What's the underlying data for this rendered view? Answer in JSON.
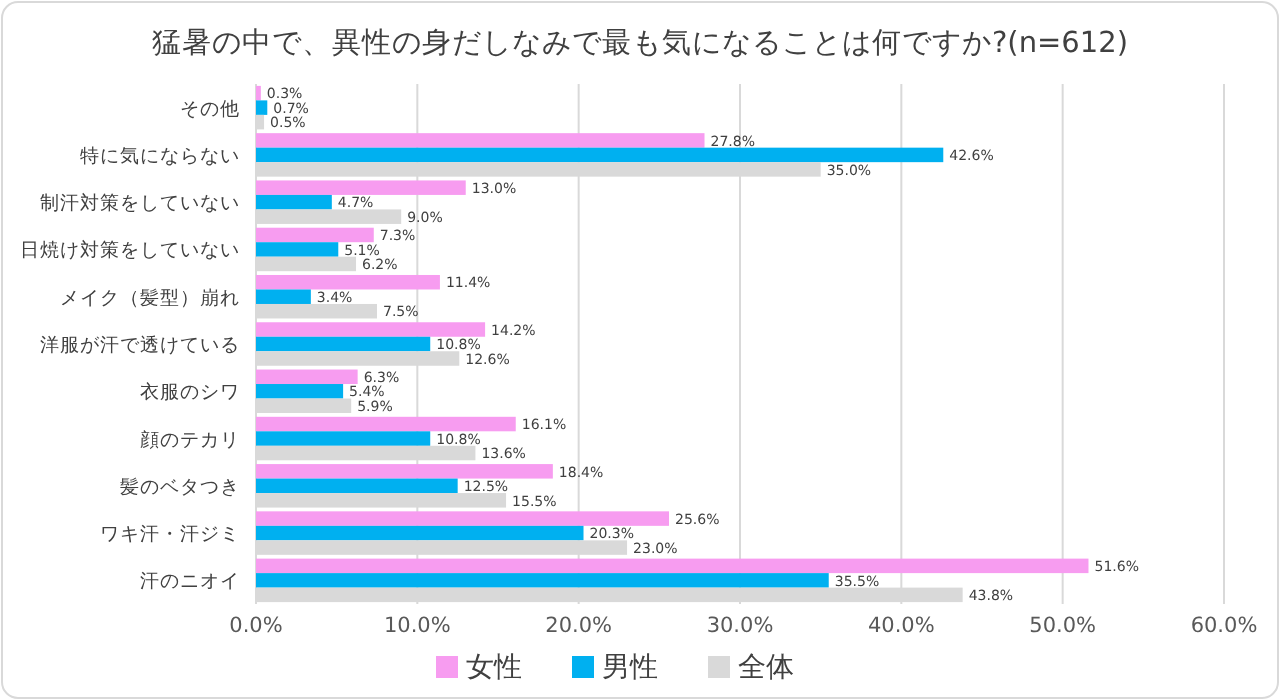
{
  "chart_data": {
    "type": "bar",
    "orientation": "horizontal",
    "title": "猛暑の中で、異性の身だしなみで最も気になることは何ですか?(n=612)",
    "categories": [
      "その他",
      "特に気にならない",
      "制汗対策をしていない",
      "日焼け対策をしていない",
      "メイク（髪型）崩れ",
      "洋服が汗で透けている",
      "衣服のシワ",
      "顔のテカリ",
      "髪のベタつき",
      "ワキ汗・汗ジミ",
      "汗のニオイ"
    ],
    "series": [
      {
        "name": "女性",
        "color": "#f79cf0",
        "values": [
          0.3,
          27.8,
          13.0,
          7.3,
          11.4,
          14.2,
          6.3,
          16.1,
          18.4,
          25.6,
          51.6
        ],
        "value_labels": [
          "0.3%",
          "27.8%",
          "13.0%",
          "7.3%",
          "11.4%",
          "14.2%",
          "6.3%",
          "16.1%",
          "18.4%",
          "25.6%",
          "51.6%"
        ]
      },
      {
        "name": "男性",
        "color": "#00b0f0",
        "values": [
          0.7,
          42.6,
          4.7,
          5.1,
          3.4,
          10.8,
          5.4,
          10.8,
          12.5,
          20.3,
          35.5
        ],
        "value_labels": [
          "0.7%",
          "42.6%",
          "4.7%",
          "5.1%",
          "3.4%",
          "10.8%",
          "5.4%",
          "10.8%",
          "12.5%",
          "20.3%",
          "35.5%"
        ]
      },
      {
        "name": "全体",
        "color": "#d9d9d9",
        "values": [
          0.5,
          35.0,
          9.0,
          6.2,
          7.5,
          12.6,
          5.9,
          13.6,
          15.5,
          23.0,
          43.8
        ],
        "value_labels": [
          "0.5%",
          "35.0%",
          "9.0%",
          "6.2%",
          "7.5%",
          "12.6%",
          "5.9%",
          "13.6%",
          "15.5%",
          "23.0%",
          "43.8%"
        ]
      }
    ],
    "xlim": [
      0,
      60
    ],
    "xticks": [
      {
        "value": 0,
        "label": "0.0%"
      },
      {
        "value": 10,
        "label": "10.0%"
      },
      {
        "value": 20,
        "label": "20.0%"
      },
      {
        "value": 30,
        "label": "30.0%"
      },
      {
        "value": 40,
        "label": "40.0%"
      },
      {
        "value": 50,
        "label": "50.0%"
      },
      {
        "value": 60,
        "label": "60.0%"
      }
    ],
    "grid": "x",
    "legend": "bottom"
  }
}
